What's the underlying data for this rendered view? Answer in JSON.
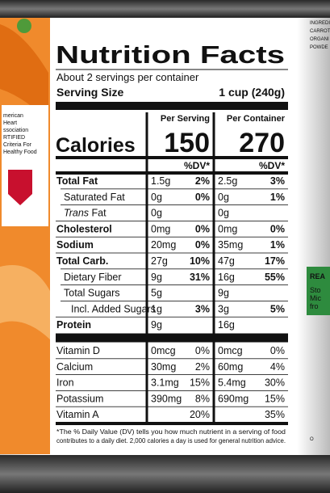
{
  "label": {
    "title": "Nutrition Facts",
    "servings": "About 2 servings per container",
    "serving_size_label": "Serving Size",
    "serving_size": "1 cup (240g)",
    "col_serving": "Per Serving",
    "col_container": "Per Container",
    "calories_label": "Calories",
    "calories_serving": "150",
    "calories_container": "270",
    "dv_header": "%DV*",
    "nutrients": [
      {
        "name": "Total Fat",
        "bold": true,
        "indent": 0,
        "s_amt": "1.5g",
        "s_dv": "2%",
        "c_amt": "2.5g",
        "c_dv": "3%"
      },
      {
        "name": "Saturated Fat",
        "bold": false,
        "indent": 1,
        "s_amt": "0g",
        "s_dv": "0%",
        "c_amt": "0g",
        "c_dv": "1%"
      },
      {
        "italic_prefix": "Trans",
        "name": " Fat",
        "bold": false,
        "indent": 1,
        "s_amt": "0g",
        "s_dv": null,
        "c_amt": "0g",
        "c_dv": null
      },
      {
        "name": "Cholesterol",
        "bold": true,
        "indent": 0,
        "s_amt": "0mg",
        "s_dv": "0%",
        "c_amt": "0mg",
        "c_dv": "0%"
      },
      {
        "name": "Sodium",
        "bold": true,
        "indent": 0,
        "s_amt": "20mg",
        "s_dv": "0%",
        "c_amt": "35mg",
        "c_dv": "1%"
      },
      {
        "name": "Total Carb.",
        "bold": true,
        "indent": 0,
        "s_amt": "27g",
        "s_dv": "10%",
        "c_amt": "47g",
        "c_dv": "17%"
      },
      {
        "name": "Dietary Fiber",
        "bold": false,
        "indent": 1,
        "s_amt": "9g",
        "s_dv": "31%",
        "c_amt": "16g",
        "c_dv": "55%"
      },
      {
        "name": "Total Sugars",
        "bold": false,
        "indent": 1,
        "s_amt": "5g",
        "s_dv": null,
        "c_amt": "9g",
        "c_dv": null
      },
      {
        "name": "Incl. Added Sugars",
        "bold": false,
        "indent": 2,
        "s_amt": "1g",
        "s_dv": "3%",
        "c_amt": "3g",
        "c_dv": "5%"
      },
      {
        "name": "Protein",
        "bold": true,
        "indent": 0,
        "s_amt": "9g",
        "s_dv": null,
        "c_amt": "16g",
        "c_dv": null
      }
    ],
    "vitamins": [
      {
        "name": "Vitamin D",
        "s_amt": "0mcg",
        "s_dv": "0%",
        "c_amt": "0mcg",
        "c_dv": "0%"
      },
      {
        "name": "Calcium",
        "s_amt": "30mg",
        "s_dv": "2%",
        "c_amt": "60mg",
        "c_dv": "4%"
      },
      {
        "name": "Iron",
        "s_amt": "3.1mg",
        "s_dv": "15%",
        "c_amt": "5.4mg",
        "c_dv": "30%"
      },
      {
        "name": "Potassium",
        "s_amt": "390mg",
        "s_dv": "8%",
        "c_amt": "690mg",
        "c_dv": "15%"
      },
      {
        "name": "Vitamin A",
        "s_amt": null,
        "s_dv": "20%",
        "c_amt": null,
        "c_dv": "35%"
      }
    ],
    "footnote_lines": [
      "*The % Daily Value (DV) tells you how much nutrient in a serving of food",
      "contributes to a daily diet. 2,000 calories a day is used for general nutrition advice."
    ]
  },
  "side_left": [
    "merican",
    "Heart",
    "ssociation",
    "RTIFIED",
    "Criteria For",
    "Healthy Food"
  ],
  "side_right": [
    "INGREDI",
    "CARROT",
    "ORGANI",
    "POWDE",
    "REA",
    "Sto",
    "Mic",
    "fro",
    "O"
  ]
}
